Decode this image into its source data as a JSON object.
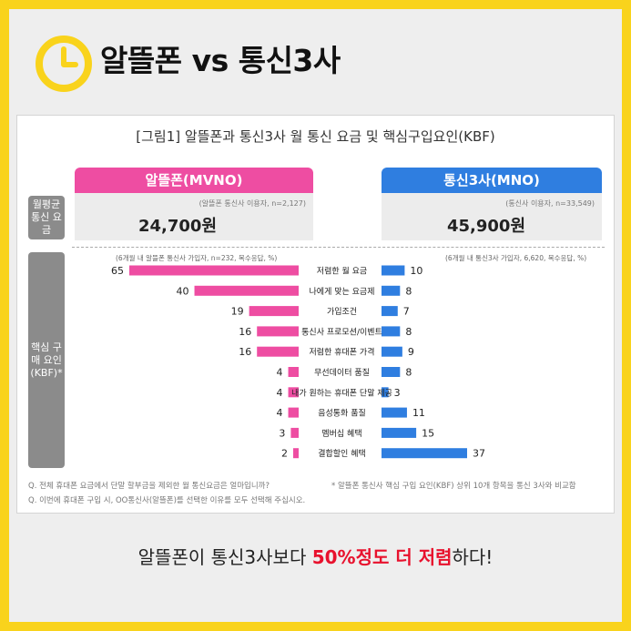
{
  "headline": "알뜰폰 vs 통신3사",
  "caption": {
    "before": "알뜰폰이 통신3사보다 ",
    "highlight": "50%정도 더 저렴",
    "after": "하다!"
  },
  "colors": {
    "frame": "#f9d31c",
    "mvno": "#ee4da2",
    "mno": "#2f7ee0",
    "highlight": "#e8112d"
  },
  "chart_data": {
    "type": "bar",
    "title": "[그림1] 알뜰폰과 통신3사 월 통신 요금 및 핵심구입요인(KBF)",
    "groups": {
      "left": "알뜰폰(MVNO)",
      "right": "통신3사(MNO)"
    },
    "fee": {
      "label": "월평균 통신 요금",
      "left": {
        "note": "(알뜰폰 통신사 이용자, n=2,127)",
        "value": "24,700원"
      },
      "right": {
        "note": "(통신사 이용자, n=33,549)",
        "value": "45,900원"
      }
    },
    "kbf_label": "핵심 구매 요인 (KBF)*",
    "kbf_notes": {
      "left": "(6개월 내 알뜰폰 통신사 가입자, n=232, 복수응답, %)",
      "right": "(6개월 내 통신3사 가입자, 6,620, 복수응답, %)"
    },
    "categories": [
      "저렴한 월 요금",
      "나에게 맞는 요금제",
      "가입조건",
      "통신사 프로모션/이벤트",
      "저렴한 휴대폰 가격",
      "무선데이터 품질",
      "내가 원하는 휴대폰 단말 제공",
      "음성통화 품질",
      "멤버십 혜택",
      "결합할인 혜택"
    ],
    "series": [
      {
        "name": "알뜰폰(MVNO)",
        "values": [
          65,
          40,
          19,
          16,
          16,
          4,
          4,
          4,
          3,
          2
        ]
      },
      {
        "name": "통신3사(MNO)",
        "values": [
          10,
          8,
          7,
          8,
          9,
          8,
          3,
          11,
          15,
          37
        ]
      }
    ],
    "footnotes": {
      "q1": "Q. 전체 휴대폰 요금에서 단말 할부금을 제외한 월 통신요금은 얼마입니까?",
      "q2": "Q. 이번에 휴대폰 구입 시, OO통신사(알뜰폰)를 선택한 이유를 모두 선택해 주십시오.",
      "note": "* 알뜰폰 통신사 핵심 구입 요인(KBF) 상위 10개 항목을 통신 3사와 비교함"
    }
  }
}
